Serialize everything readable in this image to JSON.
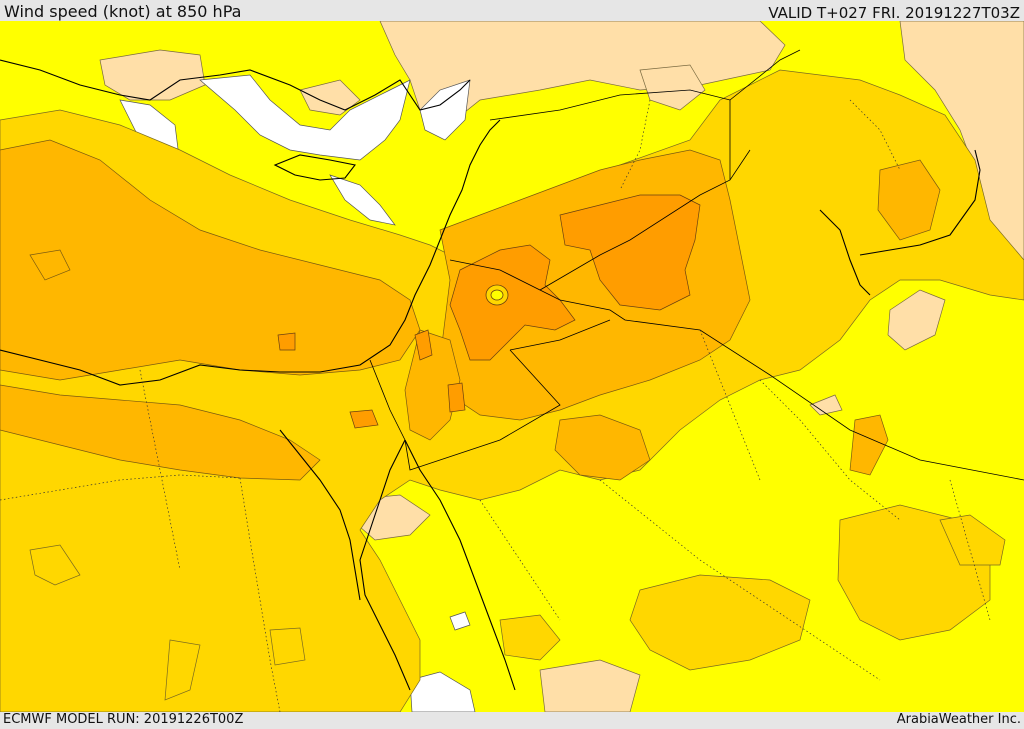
{
  "header": {
    "title": "Wind speed (knot) at 850 hPa",
    "valid": "VALID T+027 FRI. 20191227T03Z"
  },
  "footer": {
    "model_run": "ECMWF MODEL RUN: 20191226T00Z",
    "credit": "ArabiaWeather Inc."
  },
  "map": {
    "field": "wind speed",
    "level": "850 hPa",
    "units": "knot",
    "shading_colors": {
      "calm": "#ffffff",
      "very_light": "#ffdfa8",
      "light": "#ffff00",
      "moderate": "#ffd700",
      "fresh": "#ffb700",
      "strong": "#ff9d00",
      "max": "#ff8800"
    },
    "overlays": [
      "coastlines",
      "country borders",
      "province boundaries"
    ]
  }
}
